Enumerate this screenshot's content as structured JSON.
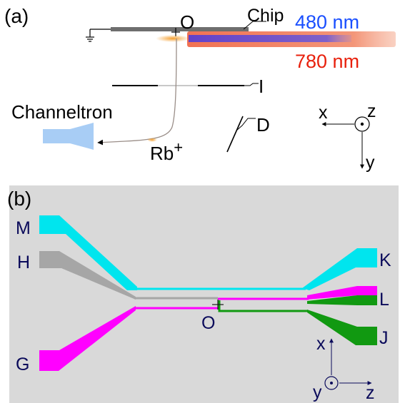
{
  "panel_a": {
    "label": "(a)",
    "origin_label": "O",
    "chip_label": "Chip",
    "laser_480": {
      "label": "480 nm",
      "color": "#1a4fff"
    },
    "laser_780": {
      "label": "780 nm",
      "color": "#e8200c"
    },
    "channeltron_label": "Channeltron",
    "ion_label": "Rb",
    "ion_charge": "+",
    "electrode_i_label": "I",
    "electrode_d_label": "D",
    "axes": {
      "x": "x",
      "y": "y",
      "z": "z"
    }
  },
  "panel_b": {
    "label": "(b)",
    "origin_label": "O",
    "electrodes": [
      {
        "label": "M",
        "color": "#00e5ee"
      },
      {
        "label": "H",
        "color": "#a6a6a6"
      },
      {
        "label": "G",
        "color": "#ff00ff"
      },
      {
        "label": "K",
        "color": "#00e5ee"
      },
      {
        "label": "L",
        "color": "#ff00ff"
      },
      {
        "label": "J",
        "color": "#119911"
      }
    ],
    "axes": {
      "x": "x",
      "y": "y",
      "z": "z"
    },
    "background": "#d9d9d9"
  }
}
